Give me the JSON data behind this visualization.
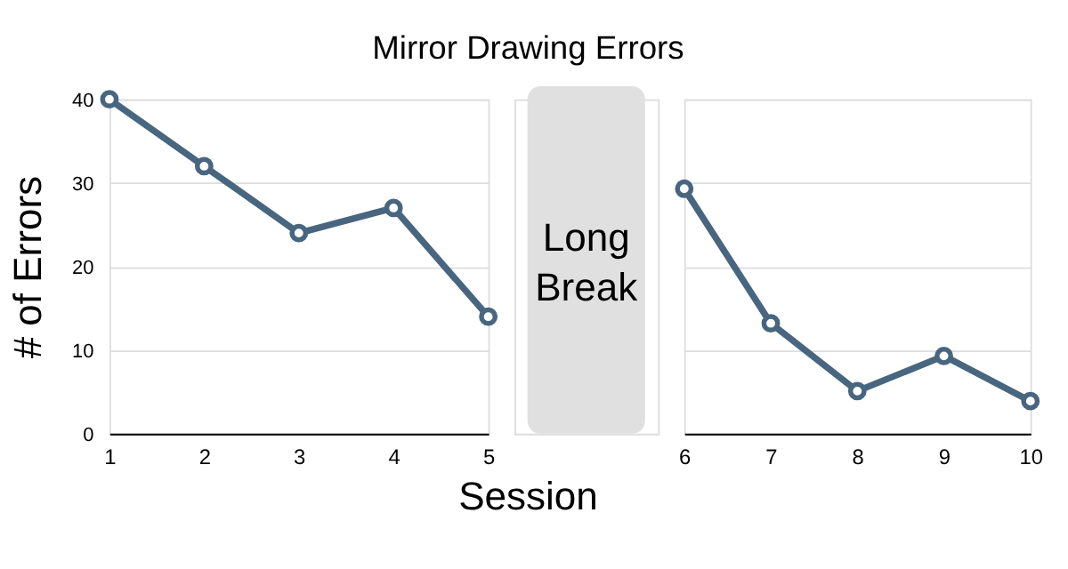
{
  "chart_data": [
    {
      "type": "line",
      "title": "Mirror Drawing Errors",
      "ylabel": "# of Errors",
      "xlabel": "Session",
      "annotations": [
        "Long Break"
      ],
      "x": [
        1,
        2,
        3,
        4,
        5
      ],
      "xlim": [
        1,
        5
      ],
      "xticks": [
        1,
        2,
        3,
        4,
        5
      ],
      "series": [
        {
          "color": "#48667f",
          "values": [
            40,
            32,
            24,
            27,
            14
          ]
        }
      ],
      "ylim": [
        0,
        40
      ],
      "yticks": [
        0,
        10,
        20,
        30,
        40
      ],
      "grid": "y",
      "marker": "circle",
      "line_style": "solid"
    },
    {
      "type": "line",
      "x": [
        6,
        7,
        8,
        9,
        10
      ],
      "xlim": [
        6,
        10
      ],
      "xticks": [
        6,
        7,
        8,
        9,
        10
      ],
      "series": [
        {
          "color": "#48667f",
          "values": [
            29.3,
            13.2,
            5.1,
            9.3,
            3.9
          ]
        }
      ],
      "ylim": [
        0,
        40
      ],
      "yticks": [
        0,
        10,
        20,
        30,
        40
      ],
      "grid": "y",
      "marker": "circle",
      "line_style": "solid",
      "tick_labels": "x"
    }
  ]
}
